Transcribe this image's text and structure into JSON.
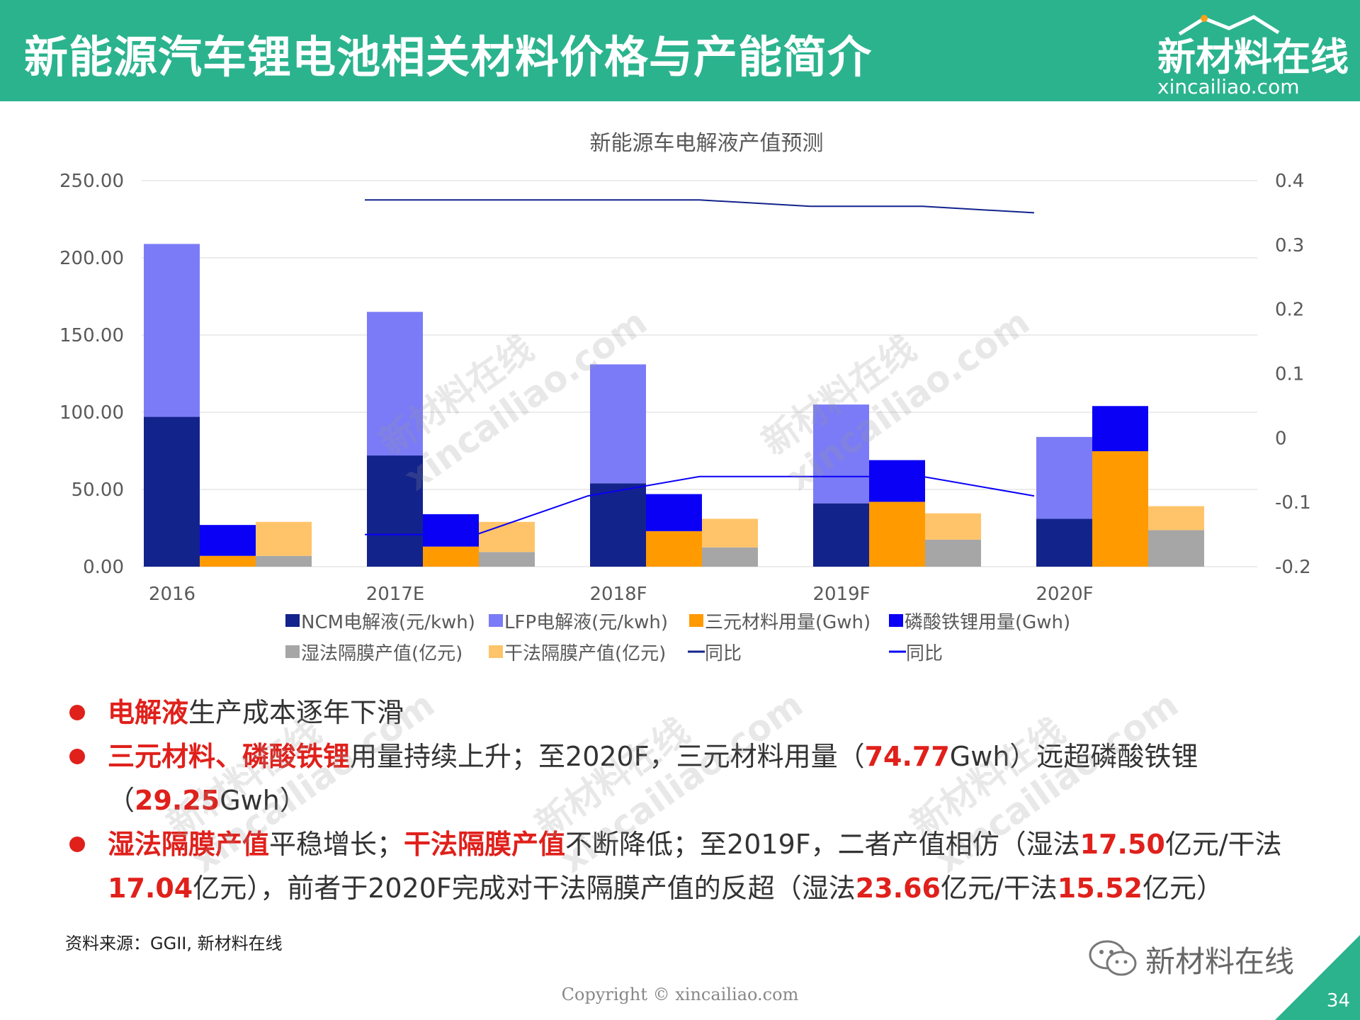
{
  "header": {
    "title": "新能源汽车锂电池相关材料价格与产能简介",
    "logo_cn": "新材料在线",
    "logo_en": "xincailiao.com"
  },
  "chart_data": {
    "type": "bar",
    "title": "新能源车电解液产值预测",
    "categories": [
      "2016",
      "2017E",
      "2018F",
      "2019F",
      "2020F"
    ],
    "y_left": {
      "range": [
        0,
        250
      ],
      "ticks": [
        "250.00",
        "200.00",
        "150.00",
        "100.00",
        "50.00",
        "0.00"
      ]
    },
    "y_right": {
      "range": [
        -0.2,
        0.4
      ],
      "ticks": [
        "0.4",
        "0.3",
        "0.2",
        "0.1",
        "0",
        "-0.1",
        "-0.2"
      ]
    },
    "series": [
      {
        "name": "NCM电解液(元/kwh)",
        "color": "#13238C",
        "values": [
          97,
          72,
          54,
          41,
          31
        ],
        "stack": "electrolyte"
      },
      {
        "name": "LFP电解液(元/kwh)",
        "color": "#7B7BF7",
        "values": [
          112,
          93,
          77,
          64,
          53
        ],
        "stack": "electrolyte"
      },
      {
        "name": "三元材料用量(Gwh)",
        "color": "#FF9A00",
        "values": [
          7,
          13,
          23,
          42,
          74.77
        ],
        "stack": "material"
      },
      {
        "name": "磷酸铁锂用量(Gwh)",
        "color": "#0A00F5",
        "values": [
          20,
          21,
          24,
          27,
          29.25
        ],
        "stack": "material"
      },
      {
        "name": "湿法隔膜产值(亿元)",
        "color": "#A6A6A6",
        "values": [
          7,
          9.5,
          12.5,
          17.5,
          23.66
        ],
        "stack": "separator"
      },
      {
        "name": "干法隔膜产值(亿元)",
        "color": "#FFC469",
        "values": [
          22,
          19.5,
          18.5,
          17.04,
          15.52
        ],
        "stack": "separator"
      },
      {
        "name": "同比",
        "type": "line",
        "axis": "right",
        "color": "#13238C",
        "x": [
          1,
          1.5,
          2,
          2.5,
          3,
          3.5,
          4
        ],
        "values": [
          0.37,
          0.37,
          0.37,
          0.37,
          0.36,
          0.36,
          0.35
        ]
      },
      {
        "name": "同比",
        "type": "line",
        "axis": "right",
        "color": "#0A00F5",
        "x": [
          1,
          1.5,
          2,
          2.5,
          3,
          3.5,
          4
        ],
        "values": [
          -0.15,
          -0.15,
          -0.09,
          -0.06,
          -0.06,
          -0.06,
          -0.09
        ]
      }
    ],
    "legend": [
      {
        "name": "NCM电解液(元/kwh)",
        "color": "#13238C",
        "kind": "box"
      },
      {
        "name": "LFP电解液(元/kwh)",
        "color": "#7B7BF7",
        "kind": "box"
      },
      {
        "name": "三元材料用量(Gwh)",
        "color": "#FF9A00",
        "kind": "box"
      },
      {
        "name": "磷酸铁锂用量(Gwh)",
        "color": "#0A00F5",
        "kind": "box"
      },
      {
        "name": "湿法隔膜产值(亿元)",
        "color": "#A6A6A6",
        "kind": "box"
      },
      {
        "name": "干法隔膜产值(亿元)",
        "color": "#FFC469",
        "kind": "box"
      },
      {
        "name": "同比",
        "color": "#13238C",
        "kind": "line"
      },
      {
        "name": "同比",
        "color": "#0A00F5",
        "kind": "line"
      }
    ],
    "legend_position": "bottom",
    "grid": true
  },
  "bullets": [
    [
      {
        "t": "电解液",
        "hl": true
      },
      {
        "t": "生产成本逐年下滑",
        "hl": false
      }
    ],
    [
      {
        "t": "三元材料、磷酸铁锂",
        "hl": true
      },
      {
        "t": "用量持续上升；至2020F，三元材料用量（",
        "hl": false
      },
      {
        "t": "74.77",
        "hl": true
      },
      {
        "t": "Gwh）远超磷酸铁锂（",
        "hl": false
      },
      {
        "t": "29.25",
        "hl": true
      },
      {
        "t": "Gwh）",
        "hl": false
      }
    ],
    [
      {
        "t": "湿法隔膜产值",
        "hl": true
      },
      {
        "t": "平稳增长；",
        "hl": false
      },
      {
        "t": "干法隔膜产值",
        "hl": true
      },
      {
        "t": "不断降低；至2019F，二者产值相仿（湿法",
        "hl": false
      },
      {
        "t": "17.50",
        "hl": true
      },
      {
        "t": "亿元/干法",
        "hl": false
      },
      {
        "t": "17.04",
        "hl": true
      },
      {
        "t": "亿元），前者于2020F完成对干法隔膜产值的反超（湿法",
        "hl": false
      },
      {
        "t": "23.66",
        "hl": true
      },
      {
        "t": "亿元/干法",
        "hl": false
      },
      {
        "t": "15.52",
        "hl": true
      },
      {
        "t": "亿元）",
        "hl": false
      }
    ]
  ],
  "source": "资料来源：GGII, 新材料在线",
  "wechat_label": "新材料在线",
  "copyright": "Copyright © xincailiao.com",
  "page_number": "34",
  "watermark_cn": "新材料在线",
  "watermark_en": "xincailiao.com",
  "colors": {
    "header_bg": "#2BB38E",
    "highlight": "#E0201B"
  }
}
